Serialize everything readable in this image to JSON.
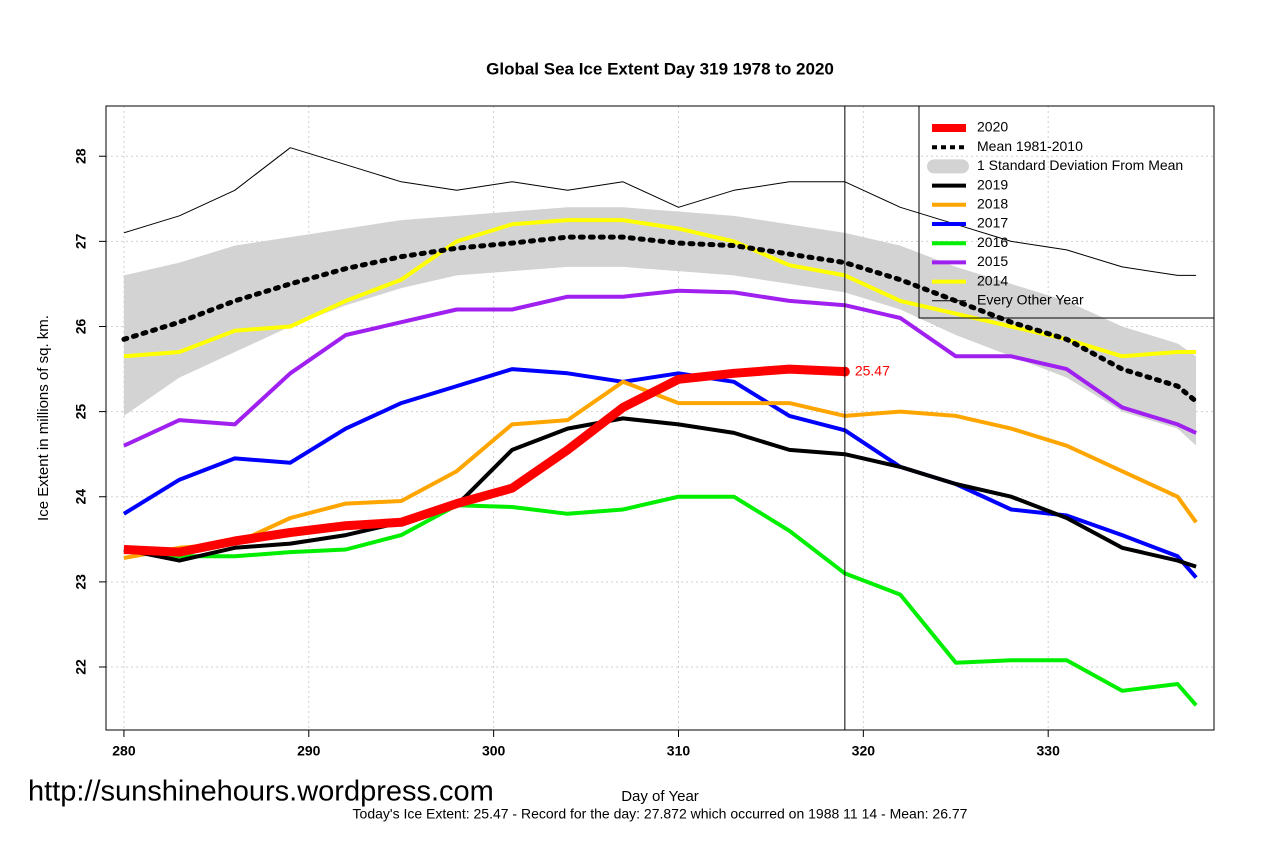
{
  "chart_data": {
    "type": "line",
    "title": "Global Sea Ice Extent Day 319 1978 to 2020",
    "x_label": "Day of Year",
    "y_label": "Ice Extent in millions of sq. km.",
    "watermark": "http://sunshinehours.wordpress.com",
    "note": "Today's Ice Extent: 25.47  - Record for the day: 27.872 which occurred on 1988 11 14  - Mean: 26.77",
    "xlim": [
      279.03,
      338.97
    ],
    "ylim": [
      21.26,
      28.59
    ],
    "xticks": [
      280,
      290,
      300,
      310,
      320,
      330
    ],
    "yticks": [
      22,
      23,
      24,
      25,
      26,
      27,
      28
    ],
    "grid": true,
    "vline": 319,
    "legend": "upper right",
    "x": [
      280,
      283,
      286,
      289,
      292,
      295,
      298,
      301,
      304,
      307,
      310,
      313,
      316,
      319,
      322,
      325,
      328,
      331,
      334,
      337,
      338
    ],
    "series": [
      {
        "name": "2020",
        "color": "#ff0000",
        "values": [
          23.38,
          23.35,
          23.48,
          23.58,
          23.66,
          23.7,
          23.92,
          24.1,
          24.55,
          25.05,
          25.38,
          25.45,
          25.5,
          25.47,
          null,
          null,
          null,
          null,
          null,
          null,
          null
        ],
        "value_labels": [
          null,
          null,
          null,
          null,
          null,
          null,
          null,
          null,
          null,
          null,
          null,
          null,
          null,
          "25.47",
          null,
          null,
          null,
          null,
          null,
          null,
          null
        ]
      },
      {
        "name": "Mean 1981-2010",
        "color": "#000000",
        "values": [
          25.85,
          26.05,
          26.3,
          26.5,
          26.68,
          26.82,
          26.92,
          26.98,
          27.05,
          27.05,
          26.98,
          26.95,
          26.85,
          26.75,
          26.55,
          26.3,
          26.05,
          25.85,
          25.5,
          25.3,
          25.12
        ]
      },
      {
        "name": "1 Standard Deviation From Mean",
        "color": "#d3d3d3",
        "lower": [
          24.95,
          25.4,
          25.7,
          26.0,
          26.25,
          26.45,
          26.6,
          26.65,
          26.7,
          26.7,
          26.65,
          26.6,
          26.5,
          26.4,
          26.2,
          25.9,
          25.65,
          25.4,
          25.0,
          24.8,
          24.6
        ],
        "upper": [
          26.6,
          26.75,
          26.95,
          27.05,
          27.15,
          27.25,
          27.3,
          27.35,
          27.4,
          27.4,
          27.35,
          27.3,
          27.2,
          27.1,
          26.95,
          26.7,
          26.5,
          26.3,
          26.0,
          25.8,
          25.65
        ]
      },
      {
        "name": "2019",
        "color": "#000000",
        "values": [
          23.38,
          23.25,
          23.4,
          23.45,
          23.55,
          23.7,
          23.9,
          24.55,
          24.8,
          24.92,
          24.85,
          24.75,
          24.55,
          24.5,
          24.35,
          24.15,
          24.0,
          23.75,
          23.4,
          23.25,
          23.18
        ]
      },
      {
        "name": "2018",
        "color": "#ffa500",
        "values": [
          23.28,
          23.4,
          23.45,
          23.75,
          23.92,
          23.95,
          24.3,
          24.85,
          24.9,
          25.35,
          25.1,
          25.1,
          25.1,
          24.95,
          25.0,
          24.95,
          24.8,
          24.6,
          24.3,
          24.0,
          23.7
        ]
      },
      {
        "name": "2017",
        "color": "#0000ff",
        "values": [
          23.8,
          24.2,
          24.45,
          24.4,
          24.8,
          25.1,
          25.3,
          25.5,
          25.45,
          25.35,
          25.45,
          25.35,
          24.95,
          24.78,
          24.35,
          24.15,
          23.85,
          23.78,
          23.55,
          23.3,
          23.05
        ]
      },
      {
        "name": "2016",
        "color": "#00ee00",
        "values": [
          23.38,
          23.3,
          23.3,
          23.35,
          23.38,
          23.55,
          23.9,
          23.88,
          23.8,
          23.85,
          24.0,
          24.0,
          23.6,
          23.1,
          22.85,
          22.05,
          22.08,
          22.08,
          21.72,
          21.8,
          21.55
        ]
      },
      {
        "name": "2015",
        "color": "#a020f0",
        "values": [
          24.6,
          24.9,
          24.85,
          25.45,
          25.9,
          26.05,
          26.2,
          26.2,
          26.35,
          26.35,
          26.42,
          26.4,
          26.3,
          26.25,
          26.1,
          25.65,
          25.65,
          25.5,
          25.05,
          24.85,
          24.75
        ]
      },
      {
        "name": "2014",
        "color": "#ffff00",
        "values": [
          25.65,
          25.7,
          25.95,
          26.0,
          26.3,
          26.55,
          27.0,
          27.2,
          27.25,
          27.25,
          27.15,
          27.0,
          26.72,
          26.6,
          26.3,
          26.15,
          26.0,
          25.85,
          25.65,
          25.7,
          25.7
        ]
      },
      {
        "name": "Every Other Year",
        "color": "#000000",
        "values": [
          27.1,
          27.3,
          27.6,
          28.1,
          27.9,
          27.7,
          27.6,
          27.7,
          27.6,
          27.7,
          27.4,
          27.6,
          27.7,
          27.7,
          27.4,
          27.2,
          27.0,
          26.9,
          26.7,
          26.6,
          26.6
        ]
      }
    ]
  }
}
